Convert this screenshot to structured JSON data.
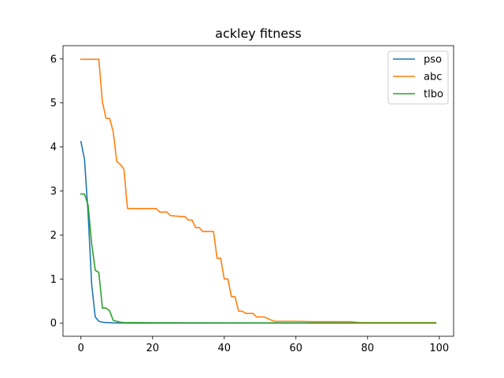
{
  "chart_data": {
    "type": "line",
    "title": "ackley fitness",
    "xlabel": "",
    "ylabel": "",
    "xlim": [
      -5,
      104
    ],
    "ylim": [
      -0.3,
      6.3
    ],
    "xticks": [
      0,
      20,
      40,
      60,
      80,
      100
    ],
    "yticks": [
      0,
      1,
      2,
      3,
      4,
      5,
      6
    ],
    "grid": false,
    "legend_position": "top-right",
    "series": [
      {
        "name": "pso",
        "color": "#1f77b4",
        "x": [
          0,
          1,
          2,
          3,
          4,
          5,
          6,
          7,
          8,
          9,
          10,
          12,
          15,
          20,
          30,
          40,
          50,
          60,
          70,
          80,
          90,
          99
        ],
        "y": [
          4.12,
          3.72,
          2.5,
          0.88,
          0.14,
          0.04,
          0.02,
          0.01,
          0.01,
          0.005,
          0.003,
          0.002,
          0.001,
          0.001,
          0,
          0,
          0,
          0,
          0,
          0,
          0,
          0
        ]
      },
      {
        "name": "abc",
        "color": "#ff7f0e",
        "x": [
          0,
          5,
          6,
          7,
          8,
          9,
          10,
          11,
          12,
          13,
          21,
          22,
          24,
          25,
          28,
          29,
          30,
          31,
          32,
          33,
          34,
          37,
          38,
          39,
          40,
          41,
          42,
          43,
          44,
          45,
          46,
          47,
          48,
          49,
          50,
          51,
          52,
          53,
          54,
          55,
          60,
          65,
          75,
          78,
          99
        ],
        "y": [
          5.99,
          5.99,
          5.02,
          4.65,
          4.65,
          4.35,
          3.67,
          3.6,
          3.5,
          2.6,
          2.6,
          2.52,
          2.52,
          2.44,
          2.42,
          2.42,
          2.34,
          2.34,
          2.17,
          2.17,
          2.08,
          2.08,
          1.47,
          1.47,
          1.0,
          1.0,
          0.6,
          0.6,
          0.27,
          0.27,
          0.22,
          0.22,
          0.22,
          0.14,
          0.14,
          0.14,
          0.11,
          0.07,
          0.04,
          0.04,
          0.04,
          0.03,
          0.03,
          0.01,
          0.01
        ]
      },
      {
        "name": "tlbo",
        "color": "#2ca02c",
        "x": [
          0,
          1,
          2,
          3,
          4,
          5,
          6,
          7,
          8,
          9,
          10,
          11,
          12,
          15,
          20,
          30,
          40,
          50,
          60,
          70,
          80,
          90,
          99
        ],
        "y": [
          2.93,
          2.93,
          2.68,
          1.8,
          1.2,
          1.15,
          0.34,
          0.34,
          0.28,
          0.06,
          0.04,
          0.02,
          0.01,
          0.01,
          0.005,
          0.003,
          0.002,
          0.001,
          0,
          0,
          0,
          0,
          0
        ]
      }
    ]
  }
}
